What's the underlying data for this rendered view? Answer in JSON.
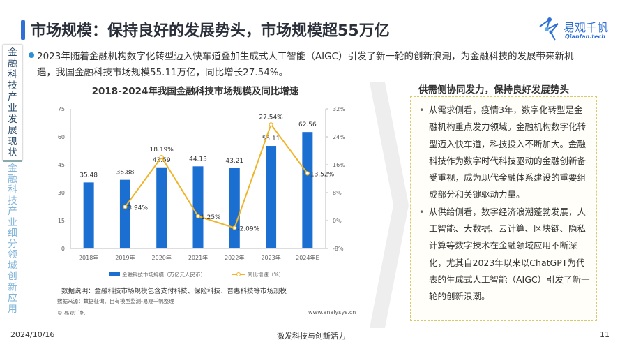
{
  "title": "市场规模：保持良好的发展势头，市场规模超55万亿",
  "logo": {
    "cn": "易观千帆",
    "en": "Qianfan.tech"
  },
  "sidebar": {
    "items": [
      {
        "label": "金融科技产业发展现状",
        "active": true
      },
      {
        "label": "金融科技产业细分领域创新应用",
        "active": false
      }
    ]
  },
  "intro": "2023年随着金融机构数字化转型迈入快车道叠加生成式人工智能（AIGC）引发了新一轮的创新浪潮，为金融科技的发展带来新机遇，我国金融科技市场规模55.11万亿，同比增长27.54%。",
  "chart_data": {
    "type": "bar+line",
    "title": "2018-2024年我国金融科技市场规模及同比增速",
    "categories": [
      "2018年",
      "2019年",
      "2020年",
      "2021年",
      "2022年",
      "2023年",
      "2024年E"
    ],
    "series": [
      {
        "name": "金融科技市场规模（万亿元人民币）",
        "type": "bar",
        "axis": "left",
        "values": [
          35.48,
          36.88,
          43.59,
          44.13,
          43.21,
          55.11,
          62.56
        ],
        "labels": [
          "35.48",
          "36.88",
          "43.59",
          "44.13",
          "43.21",
          "55.11",
          "62.56"
        ],
        "color": "#1a6fd0"
      },
      {
        "name": "同比增速（%）",
        "type": "line",
        "axis": "right",
        "values": [
          null,
          3.94,
          18.19,
          1.25,
          -2.09,
          27.54,
          13.52
        ],
        "labels": [
          "",
          "3.94%",
          "18.19%",
          "1.25%",
          "-2.09%",
          "27.54%",
          "13.52%"
        ],
        "color": "#f0b429"
      }
    ],
    "left_axis": {
      "ylim": [
        0,
        75
      ],
      "ticks": [
        "0",
        "15",
        "30",
        "45",
        "60",
        "75"
      ]
    },
    "right_axis": {
      "ylim": [
        -8,
        32
      ],
      "ticks": [
        "-8%",
        "0%",
        "8%",
        "16%",
        "24%",
        "32%"
      ]
    },
    "grid": false,
    "legend": "bottom"
  },
  "notes": {
    "desc": "数据说明：金融科技市场规模包含支付科技、保险科技、普惠科技等市场规模",
    "source": "数据来源：数据征询、自有模型监测-易观千帆整理",
    "copyright": "© 易观千帆",
    "website": "www.analysys.cn"
  },
  "right_panel": {
    "title": "供需侧协同发力，保持良好发展势头",
    "items": [
      "从需求侧看，疫情3年，数字化转型是金融机构重点发力领域。金融机构数字化转型迈入快车道，科技投入不断加大。金融科技作为数字时代科技驱动的金融创新备受重视，成为现代金融体系建设的重要组成部分和关键驱动力量。",
      "从供给侧看，数字经济浪潮蓬勃发展，人工智能、大数据、云计算、区块链、隐私计算等数字技术在金融领域应用不断深化，尤其自2023年以来以ChatGPT为代表的生成式人工智能（AIGC）引发了新一轮的创新浪潮。"
    ]
  },
  "footer": {
    "date": "2024/10/16",
    "slogan": "激发科技与创新活力",
    "page": "11"
  }
}
